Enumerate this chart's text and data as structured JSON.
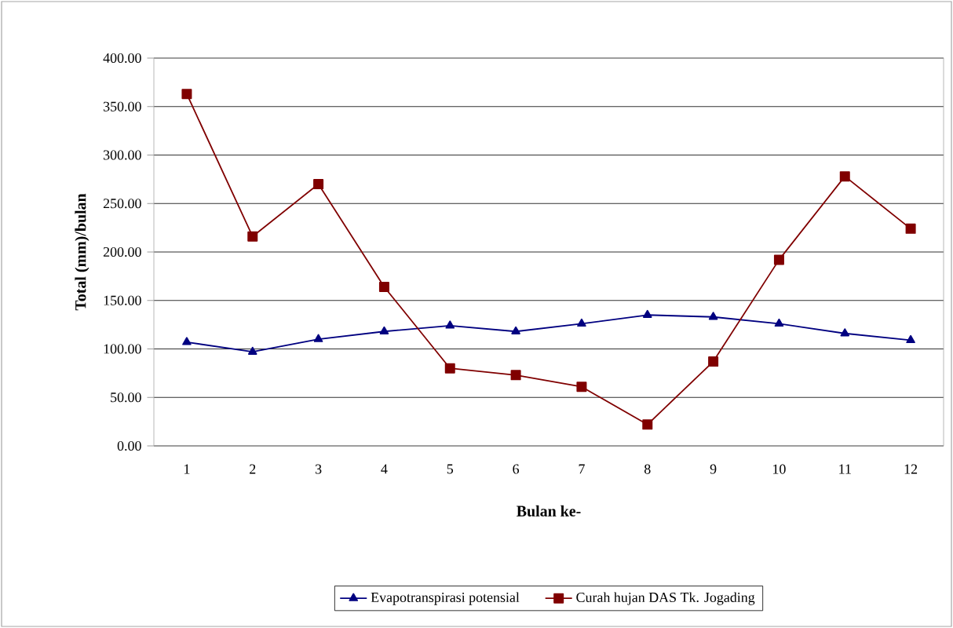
{
  "chart_data": {
    "type": "line",
    "categories": [
      "1",
      "2",
      "3",
      "4",
      "5",
      "6",
      "7",
      "8",
      "9",
      "10",
      "11",
      "12"
    ],
    "xlabel": "Bulan ke-",
    "ylabel": "Total (mm)/bulan",
    "ylim": [
      0,
      400
    ],
    "yticks": [
      {
        "value": 0,
        "label": "0.00"
      },
      {
        "value": 50,
        "label": "50.00"
      },
      {
        "value": 100,
        "label": "100.00"
      },
      {
        "value": 150,
        "label": "150.00"
      },
      {
        "value": 200,
        "label": "200.00"
      },
      {
        "value": 250,
        "label": "250.00"
      },
      {
        "value": 300,
        "label": "300.00"
      },
      {
        "value": 350,
        "label": "350.00"
      },
      {
        "value": 400,
        "label": "400.00"
      }
    ],
    "grid": "y",
    "legend": "bottom",
    "line_style": "solid",
    "series": [
      {
        "name": "Evapotranspirasi potensial",
        "color": "#000080",
        "marker": "triangle",
        "values": [
          107,
          97,
          110,
          118,
          124,
          118,
          126,
          135,
          133,
          126,
          116,
          109
        ]
      },
      {
        "name": "Curah hujan DAS Tk. Jogading",
        "color": "#800000",
        "marker": "square",
        "values": [
          363,
          216,
          270,
          164,
          80,
          73,
          61,
          22,
          87,
          192,
          278,
          224
        ]
      }
    ]
  }
}
